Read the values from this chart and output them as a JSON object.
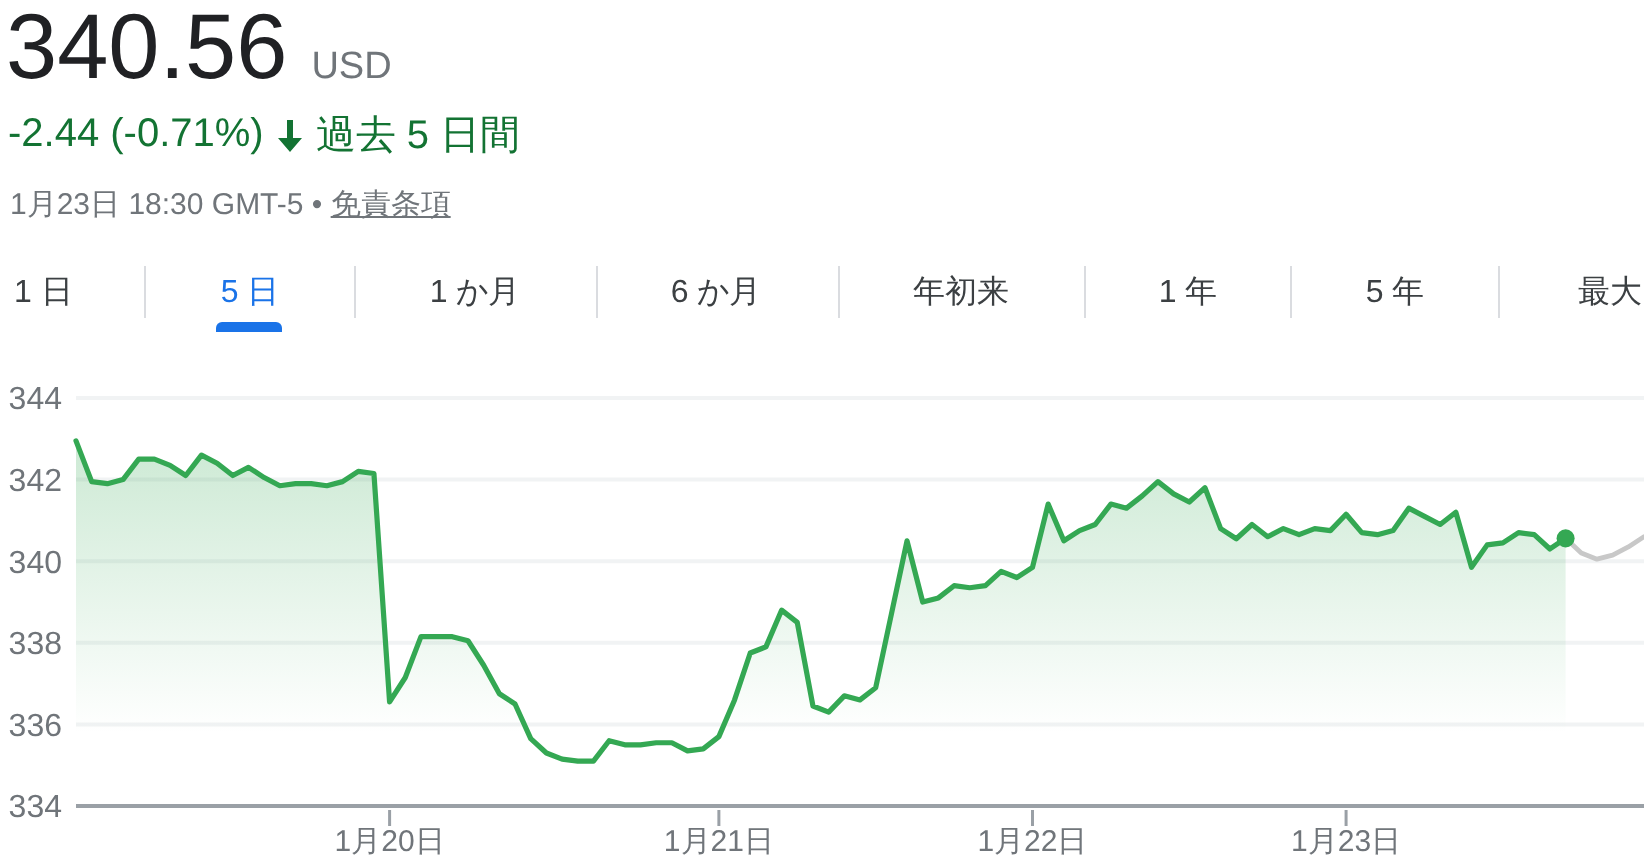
{
  "chart_data": {
    "type": "area",
    "title": "340.56",
    "annotations": [
      "USD",
      "-2.44 (-0.71%)",
      "過去 5 日間",
      "1月23日 18:30 GMT-5 •",
      "免責条項",
      "1 日",
      "5 日",
      "1 か月",
      "6 か月",
      "年初来",
      "1 年",
      "5 年",
      "最大"
    ],
    "categories": [
      null,
      null,
      null,
      null,
      null,
      null,
      null,
      null,
      null,
      null,
      null,
      null,
      null,
      null,
      null,
      null,
      null,
      null,
      null,
      null,
      "1月20日",
      null,
      null,
      null,
      null,
      null,
      null,
      null,
      null,
      null,
      null,
      null,
      null,
      null,
      null,
      null,
      null,
      null,
      null,
      null,
      null,
      "1月21日",
      null,
      null,
      null,
      null,
      null,
      null,
      null,
      null,
      null,
      null,
      null,
      null,
      null,
      null,
      null,
      null,
      null,
      null,
      null,
      "1月22日",
      null,
      null,
      null,
      null,
      null,
      null,
      null,
      null,
      null,
      null,
      null,
      null,
      null,
      null,
      null,
      null,
      null,
      null,
      null,
      "1月23日",
      null,
      null,
      null,
      null,
      null,
      null,
      null,
      null,
      null,
      null,
      null,
      null,
      null,
      null,
      null,
      null,
      null,
      null,
      null
    ],
    "ylim": [
      334,
      344
    ],
    "yticks": [
      334,
      336,
      338,
      340,
      342,
      344
    ],
    "grid": "y",
    "series": [
      {
        "color": "#34a853",
        "values": [
          342.95,
          341.95,
          341.9,
          342.0,
          342.5,
          342.5,
          342.35,
          342.1,
          342.6,
          342.4,
          342.1,
          342.3,
          342.05,
          341.85,
          341.9,
          341.9,
          341.85,
          341.95,
          342.2,
          342.15,
          336.55,
          337.15,
          338.15,
          338.15,
          338.15,
          338.05,
          337.45,
          336.75,
          336.5,
          335.65,
          335.3,
          335.15,
          335.1,
          335.1,
          335.6,
          335.5,
          335.5,
          335.55,
          335.55,
          335.35,
          335.4,
          335.7,
          336.6,
          337.75,
          337.9,
          338.8,
          338.5,
          336.45,
          336.3,
          336.7,
          336.6,
          336.9,
          338.7,
          340.5,
          339.0,
          339.1,
          339.4,
          339.35,
          339.4,
          339.75,
          339.6,
          339.85,
          341.4,
          340.5,
          340.75,
          340.9,
          341.4,
          341.3,
          341.6,
          341.95,
          341.65,
          341.45,
          341.8,
          340.8,
          340.55,
          340.9,
          340.6,
          340.8,
          340.65,
          340.8,
          340.75,
          341.15,
          340.7,
          340.65,
          340.75,
          341.3,
          341.1,
          340.9,
          341.2,
          339.85,
          340.4,
          340.45,
          340.7,
          340.65,
          340.3,
          340.56,
          null,
          null,
          null,
          null,
          null
        ]
      },
      {
        "type": "line",
        "color": "#c8c8c8",
        "values": [
          null,
          null,
          null,
          null,
          null,
          null,
          null,
          null,
          null,
          null,
          null,
          null,
          null,
          null,
          null,
          null,
          null,
          null,
          null,
          null,
          null,
          null,
          null,
          null,
          null,
          null,
          null,
          null,
          null,
          null,
          null,
          null,
          null,
          null,
          null,
          null,
          null,
          null,
          null,
          null,
          null,
          null,
          null,
          null,
          null,
          null,
          null,
          null,
          null,
          null,
          null,
          null,
          null,
          null,
          null,
          null,
          null,
          null,
          null,
          null,
          null,
          null,
          null,
          null,
          null,
          null,
          null,
          null,
          null,
          null,
          null,
          null,
          null,
          null,
          null,
          null,
          null,
          null,
          null,
          null,
          null,
          null,
          null,
          null,
          null,
          null,
          null,
          null,
          null,
          null,
          null,
          null,
          null,
          null,
          null,
          340.56,
          340.2,
          340.05,
          340.15,
          340.35,
          340.6
        ]
      },
      {
        "type": "scatter",
        "color": "#34a853",
        "values": [
          null,
          null,
          null,
          null,
          null,
          null,
          null,
          null,
          null,
          null,
          null,
          null,
          null,
          null,
          null,
          null,
          null,
          null,
          null,
          null,
          null,
          null,
          null,
          null,
          null,
          null,
          null,
          null,
          null,
          null,
          null,
          null,
          null,
          null,
          null,
          null,
          null,
          null,
          null,
          null,
          null,
          null,
          null,
          null,
          null,
          null,
          null,
          null,
          null,
          null,
          null,
          null,
          null,
          null,
          null,
          null,
          null,
          null,
          null,
          null,
          null,
          null,
          null,
          null,
          null,
          null,
          null,
          null,
          null,
          null,
          null,
          null,
          null,
          null,
          null,
          null,
          null,
          null,
          null,
          null,
          null,
          null,
          null,
          null,
          null,
          null,
          null,
          null,
          null,
          null,
          null,
          null,
          null,
          null,
          null,
          340.56,
          null,
          null,
          null,
          null,
          null
        ]
      }
    ]
  }
}
